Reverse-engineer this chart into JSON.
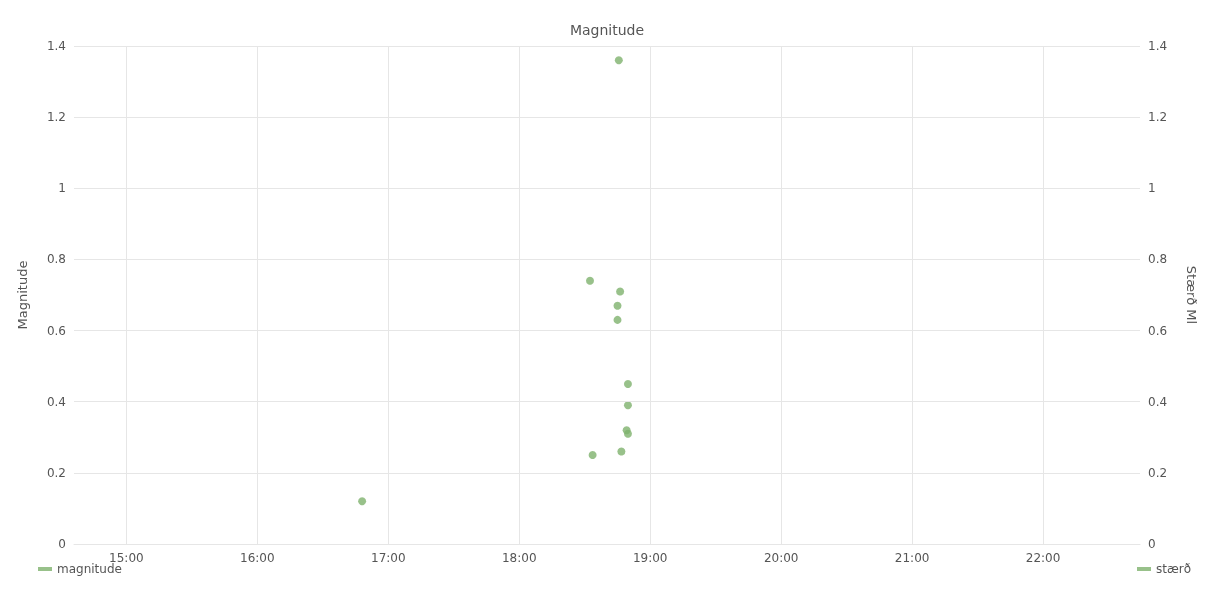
{
  "chart_data": {
    "type": "scatter",
    "title": "Magnitude",
    "ylabel": "Magnitude",
    "y2label": "Stærð Ml",
    "x": [
      18.76,
      18.54,
      18.77,
      18.75,
      18.75,
      18.83,
      18.83,
      18.82,
      18.83,
      18.78,
      18.56,
      16.8
    ],
    "series": [
      {
        "name": "magnitude",
        "color": "#7eb26d",
        "values": [
          1.36,
          0.74,
          0.71,
          0.67,
          0.63,
          0.45,
          0.39,
          0.32,
          0.31,
          0.26,
          0.25,
          0.12
        ]
      },
      {
        "name": "stærð",
        "color": "#7eb26d",
        "axis": "y2",
        "values": [
          null,
          null,
          null,
          null,
          null,
          null,
          null,
          null,
          null,
          null,
          null,
          null
        ]
      }
    ],
    "xlim": [
      14.6,
      22.74
    ],
    "xticks": [
      {
        "value": 15,
        "label": "15:00"
      },
      {
        "value": 16,
        "label": "16:00"
      },
      {
        "value": 17,
        "label": "17:00"
      },
      {
        "value": 18,
        "label": "18:00"
      },
      {
        "value": 19,
        "label": "19:00"
      },
      {
        "value": 20,
        "label": "20:00"
      },
      {
        "value": 21,
        "label": "21:00"
      },
      {
        "value": 22,
        "label": "22:00"
      }
    ],
    "ylim": [
      0,
      1.4
    ],
    "yticks": [
      0,
      0.2,
      0.4,
      0.6,
      0.8,
      1.0,
      1.2,
      1.4
    ],
    "y2lim": [
      0,
      1.4
    ],
    "y2ticks": [
      0,
      0.2,
      0.4,
      0.6,
      0.8,
      1.0,
      1.2,
      1.4
    ],
    "grid": true,
    "legend": "bottom",
    "marker": "circle"
  }
}
